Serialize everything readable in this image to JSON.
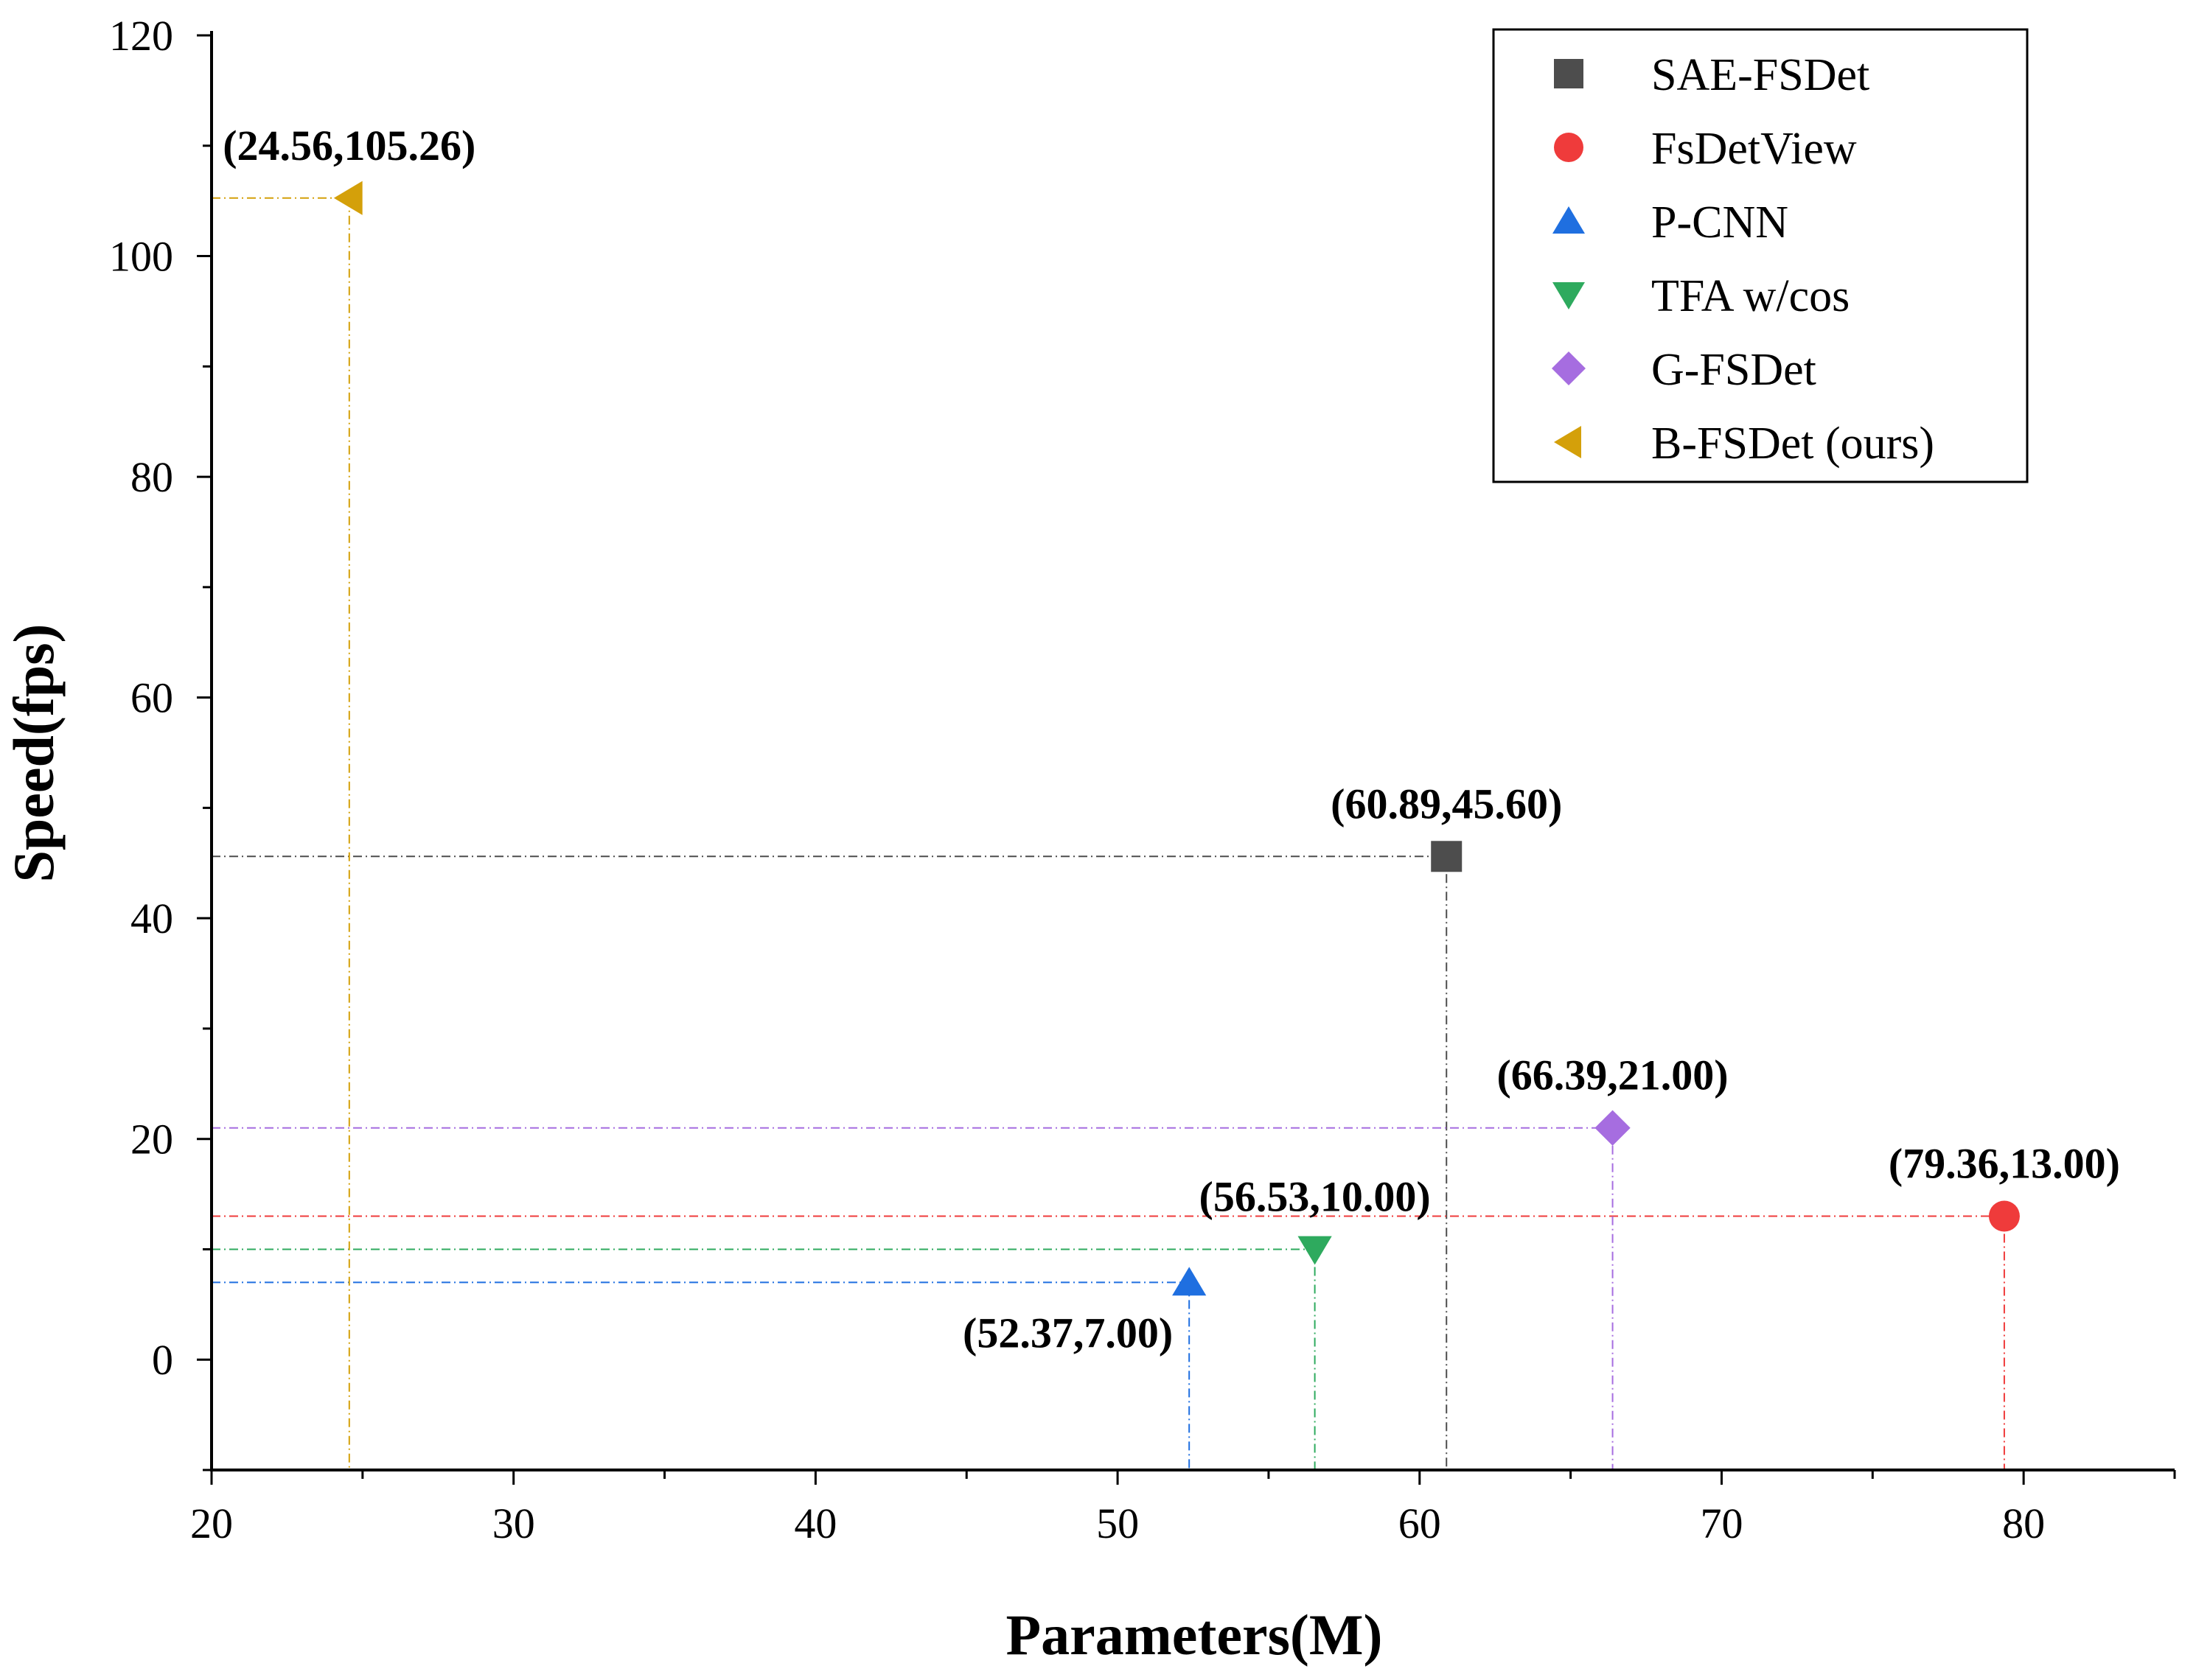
{
  "chart_data": {
    "type": "scatter",
    "title": "",
    "xlabel": "Parameters(M)",
    "ylabel": "Speed(fps)",
    "xlim": [
      20,
      85
    ],
    "ylim": [
      -10,
      120
    ],
    "xticks": [
      20,
      30,
      40,
      50,
      60,
      70,
      80
    ],
    "yticks": [
      0,
      20,
      40,
      60,
      80,
      100,
      120
    ],
    "grid": false,
    "legend_position": "top-right",
    "series": [
      {
        "name": "SAE-FSDet",
        "x": 60.89,
        "y": 45.6,
        "label": "(60.89,45.60)",
        "marker": "square",
        "color": "#4d4d4d",
        "label_side": "above"
      },
      {
        "name": "FsDetView",
        "x": 79.36,
        "y": 13.0,
        "label": "(79.36,13.00)",
        "marker": "circle",
        "color": "#ef3b3b",
        "label_side": "above"
      },
      {
        "name": "P-CNN",
        "x": 52.37,
        "y": 7.0,
        "label": "(52.37,7.00)",
        "marker": "triangle-up",
        "color": "#1f6fe0",
        "label_side": "below-left"
      },
      {
        "name": "TFA w/cos",
        "x": 56.53,
        "y": 10.0,
        "label": "(56.53,10.00)",
        "marker": "triangle-down",
        "color": "#2eaa5e",
        "label_side": "above"
      },
      {
        "name": "G-FSDet",
        "x": 66.39,
        "y": 21.0,
        "label": "(66.39,21.00)",
        "marker": "diamond",
        "color": "#a66de0",
        "label_side": "above"
      },
      {
        "name": "B-FSDet (ours)",
        "x": 24.56,
        "y": 105.26,
        "label": "(24.56,105.26)",
        "marker": "triangle-left",
        "color": "#d4a00a",
        "label_side": "above"
      }
    ]
  }
}
